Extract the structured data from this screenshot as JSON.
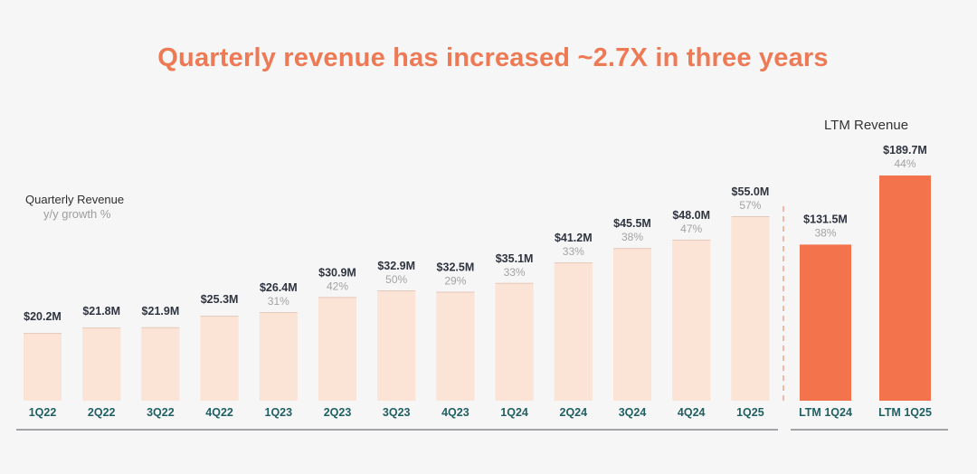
{
  "title": "Quarterly revenue has increased ~2.7X in three years",
  "legend": {
    "label": "Quarterly Revenue",
    "growth": "y/y growth %"
  },
  "ltm_header": "LTM Revenue",
  "colors": {
    "title": "#ee7a55",
    "quarter_bar": "#fbe3d6",
    "ltm_bar": "#f2734c",
    "category": "#1f5f63"
  },
  "chart_data": [
    {
      "type": "bar",
      "categories": [
        "1Q22",
        "2Q22",
        "3Q22",
        "4Q22",
        "1Q23",
        "2Q23",
        "3Q23",
        "4Q23",
        "1Q24",
        "2Q24",
        "3Q24",
        "4Q24",
        "1Q25"
      ],
      "values": [
        20.2,
        21.8,
        21.9,
        25.3,
        26.4,
        30.9,
        32.9,
        32.5,
        35.1,
        41.2,
        45.5,
        48.0,
        55.0
      ],
      "value_labels": [
        "$20.2M",
        "$21.8M",
        "$21.9M",
        "$25.3M",
        "$26.4M",
        "$30.9M",
        "$32.9M",
        "$32.5M",
        "$35.1M",
        "$41.2M",
        "$45.5M",
        "$48.0M",
        "$55.0M"
      ],
      "growth_labels": [
        "",
        "",
        "",
        "",
        "31%",
        "42%",
        "50%",
        "29%",
        "33%",
        "33%",
        "38%",
        "47%",
        "57%"
      ]
    },
    {
      "type": "bar",
      "categories": [
        "LTM 1Q24",
        "LTM 1Q25"
      ],
      "values": [
        131.5,
        189.7
      ],
      "value_labels": [
        "$131.5M",
        "$189.7M"
      ],
      "growth_labels": [
        "38%",
        "44%"
      ]
    }
  ]
}
